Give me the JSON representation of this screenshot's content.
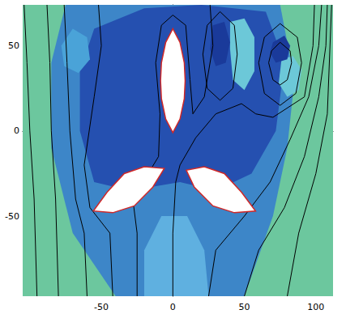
{
  "chart_data": {
    "type": "streamlines",
    "xlim": [
      -105,
      112
    ],
    "ylim": [
      -97,
      74
    ],
    "xticks": [
      -50,
      0,
      50,
      100
    ],
    "yticks": [
      -50,
      0,
      50
    ],
    "grid": false,
    "regions": [
      {
        "color": "#6cc79e",
        "points": [
          [
            -105,
            -97
          ],
          [
            112,
            -97
          ],
          [
            112,
            74
          ],
          [
            -105,
            74
          ]
        ]
      },
      {
        "color": "#3d86c8",
        "points": [
          [
            -75,
            74
          ],
          [
            75,
            74
          ],
          [
            85,
            30
          ],
          [
            80,
            -10
          ],
          [
            70,
            -50
          ],
          [
            50,
            -97
          ],
          [
            -40,
            -97
          ],
          [
            -70,
            -60
          ],
          [
            -85,
            -10
          ],
          [
            -85,
            40
          ]
        ]
      },
      {
        "color": "#2550b0",
        "points": [
          [
            -55,
            60
          ],
          [
            -20,
            72
          ],
          [
            20,
            74
          ],
          [
            65,
            70
          ],
          [
            78,
            40
          ],
          [
            72,
            0
          ],
          [
            55,
            -25
          ],
          [
            30,
            -35
          ],
          [
            5,
            -30
          ],
          [
            -30,
            -35
          ],
          [
            -55,
            -30
          ],
          [
            -65,
            0
          ],
          [
            -65,
            35
          ]
        ]
      },
      {
        "color": "#4aa3d8",
        "points": [
          [
            -78,
            50
          ],
          [
            -70,
            60
          ],
          [
            -60,
            55
          ],
          [
            -58,
            42
          ],
          [
            -66,
            34
          ],
          [
            -76,
            38
          ]
        ]
      },
      {
        "color": "#5fb0e0",
        "points": [
          [
            -20,
            -97
          ],
          [
            25,
            -97
          ],
          [
            22,
            -70
          ],
          [
            10,
            -50
          ],
          [
            -8,
            -50
          ],
          [
            -20,
            -70
          ]
        ]
      },
      {
        "color": "#6cc8d8",
        "points": [
          [
            40,
            64
          ],
          [
            50,
            66
          ],
          [
            57,
            55
          ],
          [
            57,
            35
          ],
          [
            50,
            24
          ],
          [
            42,
            30
          ],
          [
            40,
            48
          ]
        ]
      },
      {
        "color": "#6cc8d8",
        "points": [
          [
            76,
            42
          ],
          [
            84,
            44
          ],
          [
            90,
            36
          ],
          [
            88,
            24
          ],
          [
            80,
            20
          ],
          [
            74,
            28
          ]
        ]
      },
      {
        "color": "#1a3a9a",
        "points": [
          [
            28,
            62
          ],
          [
            36,
            64
          ],
          [
            40,
            52
          ],
          [
            37,
            40
          ],
          [
            30,
            38
          ],
          [
            26,
            48
          ]
        ]
      },
      {
        "color": "#1a3a9a",
        "points": [
          [
            70,
            52
          ],
          [
            78,
            56
          ],
          [
            82,
            50
          ],
          [
            80,
            42
          ],
          [
            72,
            40
          ],
          [
            68,
            46
          ]
        ]
      }
    ],
    "streamlines": [
      {
        "color": "#000000",
        "points": [
          [
            -95,
            -97
          ],
          [
            -97,
            -40
          ],
          [
            -100,
            0
          ],
          [
            -102,
            40
          ],
          [
            -104,
            74
          ]
        ]
      },
      {
        "color": "#000000",
        "points": [
          [
            -80,
            -97
          ],
          [
            -82,
            -40
          ],
          [
            -85,
            0
          ],
          [
            -86,
            40
          ],
          [
            -88,
            74
          ]
        ]
      },
      {
        "color": "#000000",
        "points": [
          [
            -60,
            -97
          ],
          [
            -62,
            -60
          ],
          [
            -68,
            -40
          ],
          [
            -72,
            0
          ],
          [
            -74,
            40
          ],
          [
            -76,
            74
          ]
        ]
      },
      {
        "color": "#000000",
        "points": [
          [
            -42,
            -97
          ],
          [
            -44,
            -60
          ],
          [
            -58,
            -45
          ],
          [
            -62,
            -20
          ],
          [
            -55,
            20
          ],
          [
            -50,
            50
          ],
          [
            -52,
            74
          ]
        ]
      },
      {
        "color": "#000000",
        "points": [
          [
            -25,
            -97
          ],
          [
            -25,
            -60
          ],
          [
            -28,
            -40
          ],
          [
            -10,
            -15
          ],
          [
            -9,
            10
          ],
          [
            -12,
            40
          ],
          [
            -8,
            62
          ],
          [
            0,
            68
          ],
          [
            9,
            62
          ],
          [
            12,
            30
          ],
          [
            14,
            10
          ],
          [
            22,
            20
          ],
          [
            28,
            50
          ],
          [
            26,
            74
          ]
        ]
      },
      {
        "color": "#000000",
        "points": [
          [
            0,
            -97
          ],
          [
            0,
            -60
          ],
          [
            2,
            -30
          ],
          [
            5,
            -20
          ],
          [
            16,
            -4
          ],
          [
            30,
            10
          ],
          [
            48,
            16
          ],
          [
            58,
            10
          ],
          [
            70,
            8
          ],
          [
            92,
            20
          ],
          [
            98,
            50
          ],
          [
            99,
            74
          ]
        ]
      },
      {
        "color": "#000000",
        "points": [
          [
            25,
            -97
          ],
          [
            30,
            -70
          ],
          [
            50,
            -50
          ],
          [
            68,
            -30
          ],
          [
            82,
            -5
          ],
          [
            95,
            20
          ],
          [
            102,
            50
          ],
          [
            104,
            74
          ]
        ]
      },
      {
        "color": "#000000",
        "points": [
          [
            50,
            -97
          ],
          [
            60,
            -70
          ],
          [
            78,
            -45
          ],
          [
            92,
            -15
          ],
          [
            102,
            20
          ],
          [
            107,
            50
          ],
          [
            108,
            74
          ]
        ]
      },
      {
        "color": "#000000",
        "points": [
          [
            80,
            -97
          ],
          [
            88,
            -60
          ],
          [
            100,
            -25
          ],
          [
            108,
            10
          ],
          [
            111,
            74
          ]
        ]
      },
      {
        "color": "#000000",
        "points": [
          [
            33,
            70
          ],
          [
            43,
            62
          ],
          [
            45,
            45
          ],
          [
            42,
            25
          ],
          [
            33,
            18
          ],
          [
            24,
            25
          ],
          [
            21,
            45
          ],
          [
            24,
            62
          ],
          [
            33,
            70
          ]
        ]
      },
      {
        "color": "#000000",
        "points": [
          [
            75,
            63
          ],
          [
            87,
            55
          ],
          [
            90,
            40
          ],
          [
            86,
            22
          ],
          [
            75,
            15
          ],
          [
            64,
            22
          ],
          [
            60,
            40
          ],
          [
            64,
            55
          ],
          [
            75,
            63
          ]
        ]
      },
      {
        "color": "#000000",
        "points": [
          [
            75,
            52
          ],
          [
            82,
            47
          ],
          [
            83,
            40
          ],
          [
            80,
            30
          ],
          [
            75,
            27
          ],
          [
            70,
            30
          ],
          [
            67,
            40
          ],
          [
            69,
            47
          ],
          [
            75,
            52
          ]
        ]
      }
    ],
    "bodies": [
      {
        "color": "#ffffff",
        "points": [
          [
            0,
            60
          ],
          [
            5,
            52
          ],
          [
            8,
            40
          ],
          [
            8.6,
            29.5
          ],
          [
            8,
            19
          ],
          [
            5,
            7
          ],
          [
            0,
            -1
          ],
          [
            -5,
            7
          ],
          [
            -8,
            19
          ],
          [
            -8.6,
            29.5
          ],
          [
            -8,
            40
          ],
          [
            -5,
            52
          ]
        ]
      },
      {
        "color": "#ffffff",
        "points": [
          [
            -55.6,
            -47
          ],
          [
            -46,
            -36
          ],
          [
            -34,
            -25
          ],
          [
            -20,
            -21
          ],
          [
            -6,
            -22
          ],
          [
            -14,
            -33
          ],
          [
            -27,
            -44
          ],
          [
            -42,
            -48
          ]
        ]
      },
      {
        "color": "#ffffff",
        "points": [
          [
            57.8,
            -47
          ],
          [
            48,
            -36
          ],
          [
            36,
            -25
          ],
          [
            22,
            -21
          ],
          [
            9.4,
            -23
          ],
          [
            15,
            -33
          ],
          [
            28,
            -44
          ],
          [
            43,
            -48
          ]
        ]
      }
    ]
  }
}
